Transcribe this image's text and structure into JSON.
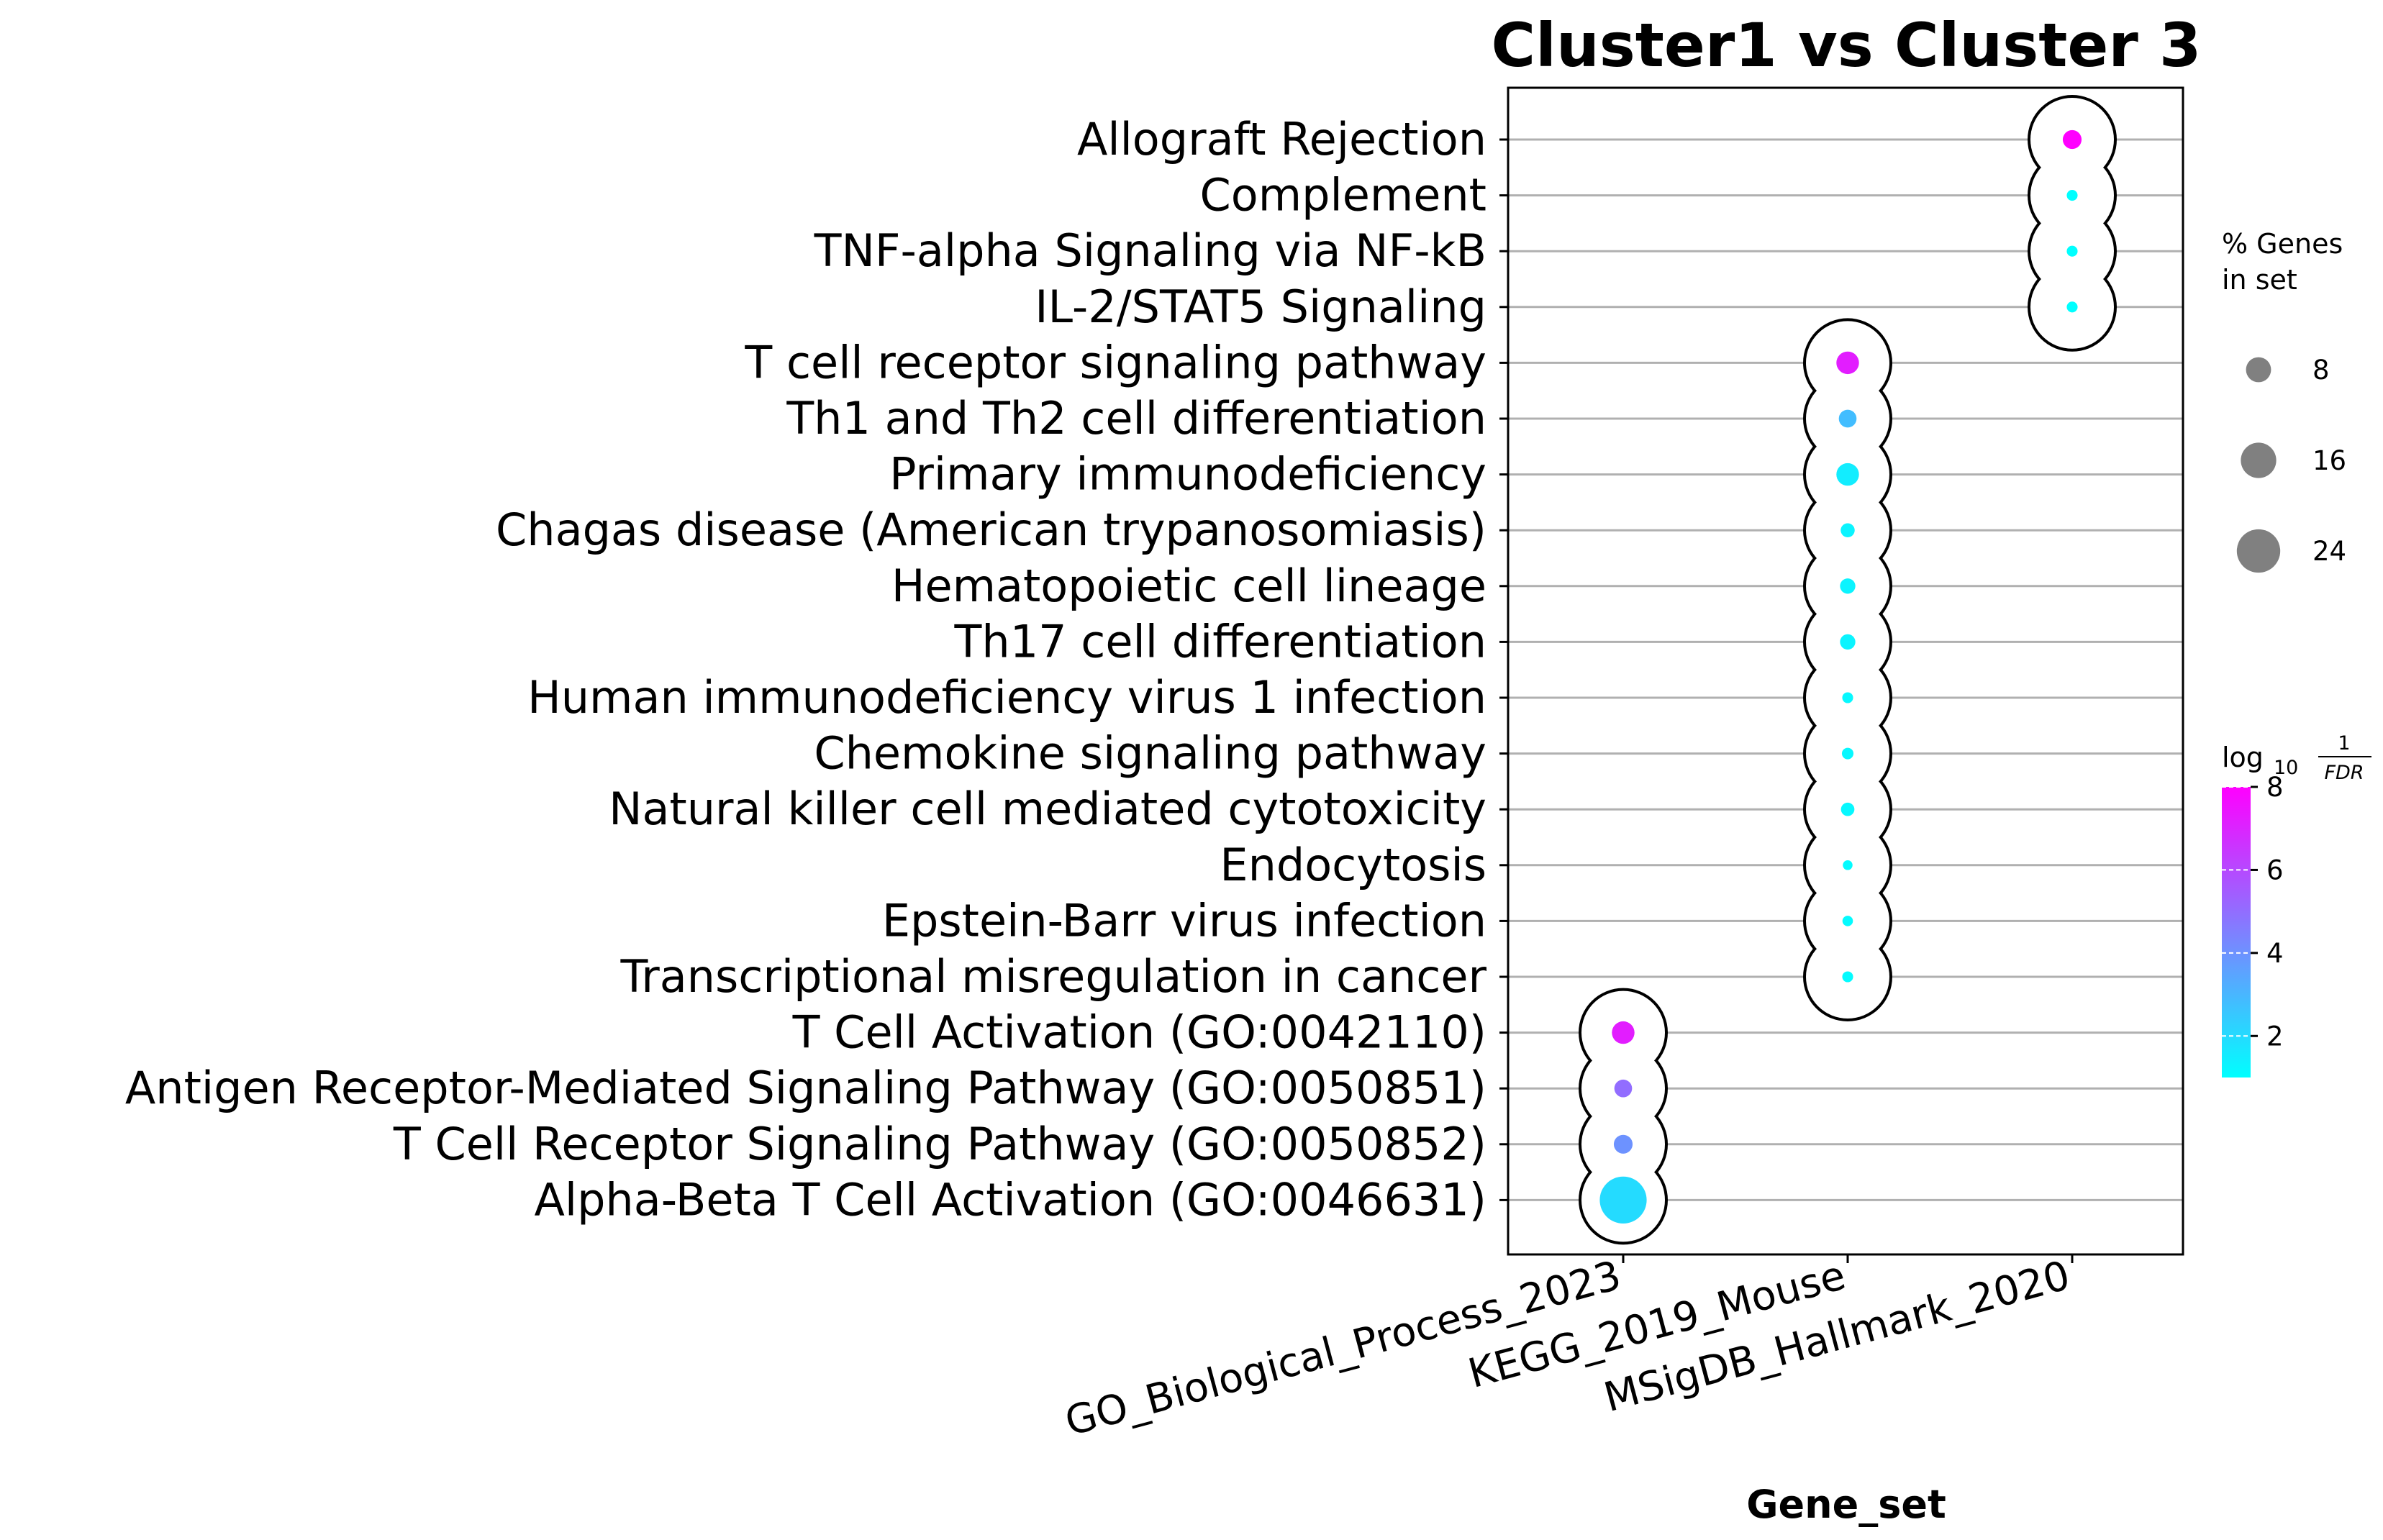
{
  "chart_data": {
    "type": "scatter",
    "title": "Cluster1 vs Cluster 3",
    "xlabel": "Gene_set",
    "ylabel": "",
    "x_categories": [
      "GO_Biological_Process_2023",
      "KEGG_2019_Mouse",
      "MSigDB_Hallmark_2020"
    ],
    "y_categories": [
      "Allograft Rejection",
      "Complement",
      "TNF-alpha Signaling via NF-kB",
      "IL-2/STAT5 Signaling",
      "T cell receptor signaling pathway",
      "Th1 and Th2 cell differentiation",
      "Primary immunodeficiency",
      "Chagas disease (American trypanosomiasis)",
      "Hematopoietic cell lineage",
      "Th17 cell differentiation",
      "Human immunodeficiency virus 1 infection",
      "Chemokine signaling pathway",
      "Natural killer cell mediated cytotoxicity",
      "Endocytosis",
      "Epstein-Barr virus infection",
      "Transcriptional misregulation in cancer",
      "T Cell Activation (GO:0042110)",
      "Antigen Receptor-Mediated Signaling Pathway (GO:0050851)",
      "T Cell Receptor Signaling Pathway (GO:0050852)",
      "Alpha-Beta T Cell Activation (GO:0046631)"
    ],
    "points": [
      {
        "term": "Allograft Rejection",
        "gene_set": "MSigDB_Hallmark_2020",
        "pct_genes": 4.5,
        "log10_inv_fdr": 8.0
      },
      {
        "term": "Complement",
        "gene_set": "MSigDB_Hallmark_2020",
        "pct_genes": 1.5,
        "log10_inv_fdr": 1.0
      },
      {
        "term": "TNF-alpha Signaling via NF-kB",
        "gene_set": "MSigDB_Hallmark_2020",
        "pct_genes": 1.5,
        "log10_inv_fdr": 1.0
      },
      {
        "term": "IL-2/STAT5 Signaling",
        "gene_set": "MSigDB_Hallmark_2020",
        "pct_genes": 1.5,
        "log10_inv_fdr": 1.0
      },
      {
        "term": "T cell receptor signaling pathway",
        "gene_set": "KEGG_2019_Mouse",
        "pct_genes": 6.5,
        "log10_inv_fdr": 7.2
      },
      {
        "term": "Th1 and Th2 cell differentiation",
        "gene_set": "KEGG_2019_Mouse",
        "pct_genes": 4.0,
        "log10_inv_fdr": 2.8
      },
      {
        "term": "Primary immunodeficiency",
        "gene_set": "KEGG_2019_Mouse",
        "pct_genes": 6.5,
        "log10_inv_fdr": 1.5
      },
      {
        "term": "Chagas disease (American trypanosomiasis)",
        "gene_set": "KEGG_2019_Mouse",
        "pct_genes": 2.5,
        "log10_inv_fdr": 1.3
      },
      {
        "term": "Hematopoietic cell lineage",
        "gene_set": "KEGG_2019_Mouse",
        "pct_genes": 3.0,
        "log10_inv_fdr": 1.3
      },
      {
        "term": "Th17 cell differentiation",
        "gene_set": "KEGG_2019_Mouse",
        "pct_genes": 3.0,
        "log10_inv_fdr": 1.3
      },
      {
        "term": "Human immunodeficiency virus 1 infection",
        "gene_set": "KEGG_2019_Mouse",
        "pct_genes": 1.5,
        "log10_inv_fdr": 1.2
      },
      {
        "term": "Chemokine signaling pathway",
        "gene_set": "KEGG_2019_Mouse",
        "pct_genes": 1.7,
        "log10_inv_fdr": 1.2
      },
      {
        "term": "Natural killer cell mediated cytotoxicity",
        "gene_set": "KEGG_2019_Mouse",
        "pct_genes": 2.3,
        "log10_inv_fdr": 1.2
      },
      {
        "term": "Endocytosis",
        "gene_set": "KEGG_2019_Mouse",
        "pct_genes": 1.2,
        "log10_inv_fdr": 1.1
      },
      {
        "term": "Epstein-Barr virus infection",
        "gene_set": "KEGG_2019_Mouse",
        "pct_genes": 1.4,
        "log10_inv_fdr": 1.1
      },
      {
        "term": "Transcriptional misregulation in cancer",
        "gene_set": "KEGG_2019_Mouse",
        "pct_genes": 1.5,
        "log10_inv_fdr": 1.1
      },
      {
        "term": "T Cell Activation (GO:0042110)",
        "gene_set": "GO_Biological_Process_2023",
        "pct_genes": 6.5,
        "log10_inv_fdr": 7.2
      },
      {
        "term": "Antigen Receptor-Mediated Signaling Pathway (GO:0050851)",
        "gene_set": "GO_Biological_Process_2023",
        "pct_genes": 4.0,
        "log10_inv_fdr": 5.0
      },
      {
        "term": "T Cell Receptor Signaling Pathway (GO:0050852)",
        "gene_set": "GO_Biological_Process_2023",
        "pct_genes": 4.5,
        "log10_inv_fdr": 4.0
      },
      {
        "term": "Alpha-Beta T Cell Activation (GO:0046631)",
        "gene_set": "GO_Biological_Process_2023",
        "pct_genes": 28.0,
        "log10_inv_fdr": 2.0
      }
    ],
    "size_legend": {
      "title_line1": "% Genes",
      "title_line2": "in set",
      "entries": [
        {
          "value": 8,
          "label": "8"
        },
        {
          "value": 16,
          "label": "16"
        },
        {
          "value": 24,
          "label": "24"
        }
      ]
    },
    "colorbar": {
      "title_prefix": "log",
      "title_sub": "10",
      "title_num": "1",
      "title_den": "FDR",
      "range": [
        1,
        8
      ],
      "ticks": [
        {
          "value": 2,
          "label": "2"
        },
        {
          "value": 4,
          "label": "4"
        },
        {
          "value": 6,
          "label": "6"
        },
        {
          "value": 8,
          "label": "8"
        }
      ],
      "colors": [
        "#00ffff",
        "#ff00ff"
      ]
    },
    "group_outline_color": "#000000",
    "grid_color": "#b0b0b0",
    "legend_marker_color": "#808080"
  }
}
